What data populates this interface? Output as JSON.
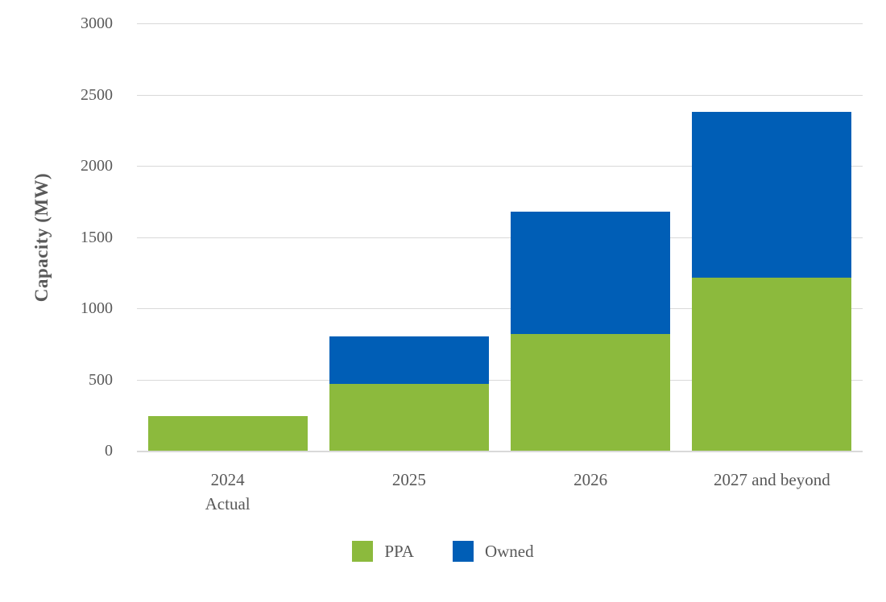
{
  "chart_data": {
    "type": "bar",
    "stacked": true,
    "title": "",
    "ylabel": "Capacity (MW)",
    "xlabel": "",
    "categories": [
      {
        "label": "2024",
        "sublabel": "Actual"
      },
      {
        "label": "2025",
        "sublabel": ""
      },
      {
        "label": "2026",
        "sublabel": ""
      },
      {
        "label": "2027 and beyond",
        "sublabel": ""
      }
    ],
    "series": [
      {
        "name": "PPA",
        "color": "#8CBA3D",
        "values": [
          245,
          470,
          820,
          1215
        ]
      },
      {
        "name": "Owned",
        "color": "#005EB6",
        "values": [
          0,
          330,
          860,
          1165
        ]
      }
    ],
    "stack_totals": [
      245,
      800,
      1680,
      2380
    ],
    "ylim": [
      0,
      3000
    ],
    "yticks": [
      0,
      500,
      1000,
      1500,
      2000,
      2500,
      3000
    ],
    "grid": true,
    "legend_position": "bottom",
    "axis_text_color": "#595959",
    "gridline_color": "#D9D9D9",
    "background_color": "#FFFFFF"
  }
}
